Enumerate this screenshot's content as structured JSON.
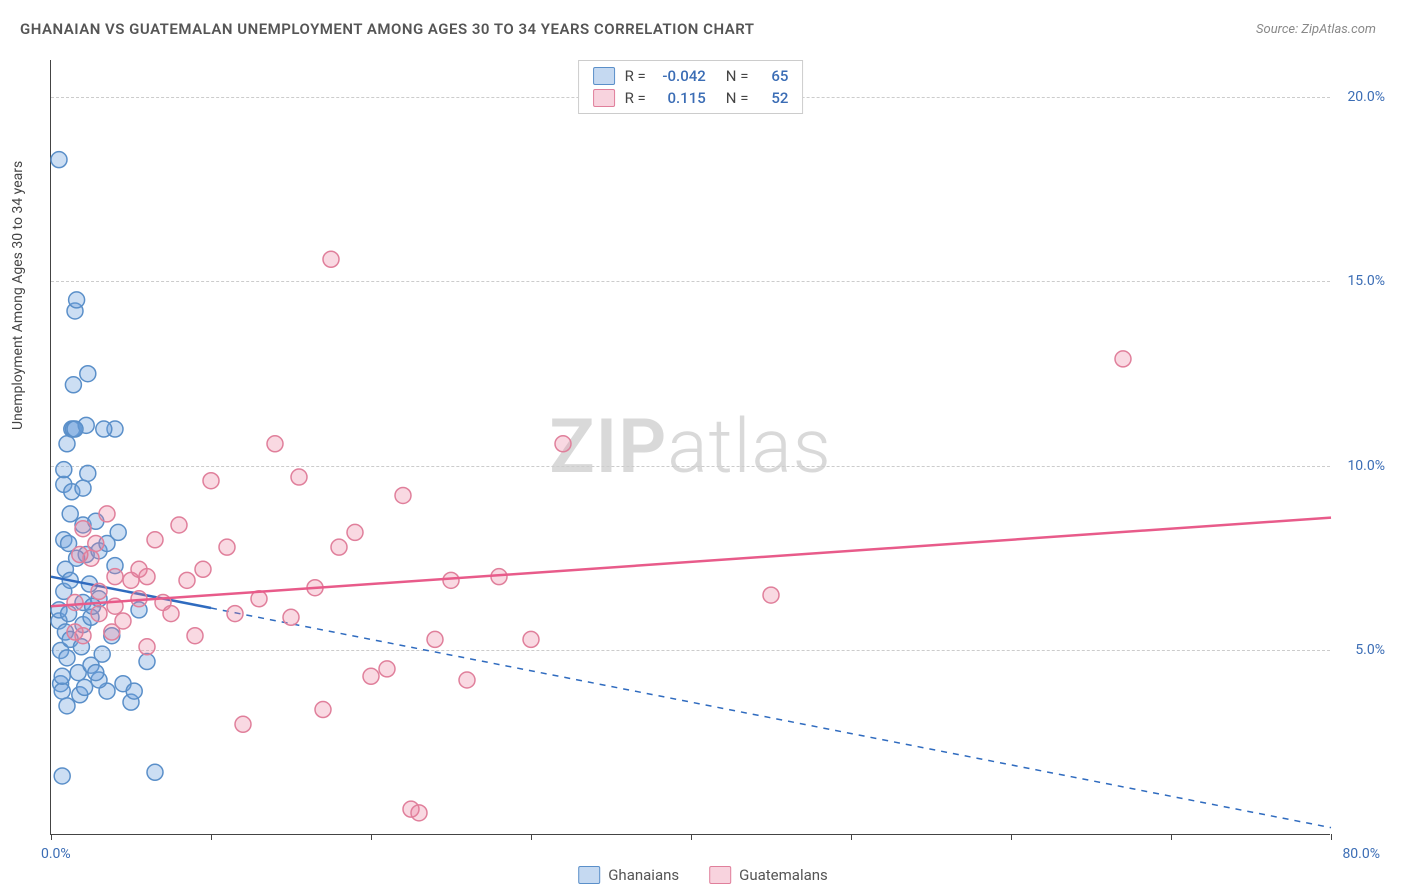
{
  "title": "GHANAIAN VS GUATEMALAN UNEMPLOYMENT AMONG AGES 30 TO 34 YEARS CORRELATION CHART",
  "source": "Source: ZipAtlas.com",
  "y_axis_label": "Unemployment Among Ages 30 to 34 years",
  "watermark_bold": "ZIP",
  "watermark_rest": "atlas",
  "chart": {
    "type": "scatter",
    "xlim": [
      0,
      80
    ],
    "ylim": [
      0,
      21
    ],
    "x_ticks": [
      0,
      10,
      20,
      30,
      40,
      50,
      60,
      70,
      80
    ],
    "x_tick_labels": {
      "0": "0.0%",
      "80": "80.0%"
    },
    "y_grid": [
      5,
      10,
      15,
      20
    ],
    "y_tick_labels": {
      "5": "5.0%",
      "10": "10.0%",
      "15": "15.0%",
      "20": "20.0%"
    },
    "background_color": "#ffffff",
    "grid_color": "#cccccc",
    "series": [
      {
        "key": "ghanaians",
        "name": "Ghanaians",
        "R": "-0.042",
        "N": "65",
        "marker_fill": "rgba(110,160,220,0.35)",
        "marker_stroke": "#5a8fc9",
        "line_color": "#2f6bbf",
        "line_dash_after_x": 10,
        "trend": {
          "x1": 0,
          "y1": 7.0,
          "x2": 80,
          "y2": 0.2
        },
        "data": [
          [
            0.5,
            5.8
          ],
          [
            0.5,
            6.1
          ],
          [
            0.6,
            4.1
          ],
          [
            0.6,
            5.0
          ],
          [
            0.7,
            3.9
          ],
          [
            0.7,
            4.3
          ],
          [
            0.8,
            8.0
          ],
          [
            0.8,
            9.5
          ],
          [
            0.8,
            6.6
          ],
          [
            0.9,
            7.2
          ],
          [
            0.9,
            5.5
          ],
          [
            1.0,
            3.5
          ],
          [
            1.0,
            4.8
          ],
          [
            1.1,
            6.0
          ],
          [
            1.1,
            7.9
          ],
          [
            1.2,
            5.3
          ],
          [
            1.2,
            8.7
          ],
          [
            1.3,
            9.3
          ],
          [
            1.3,
            11.0
          ],
          [
            1.4,
            11.0
          ],
          [
            1.4,
            12.2
          ],
          [
            1.5,
            14.2
          ],
          [
            1.6,
            14.5
          ],
          [
            1.7,
            4.4
          ],
          [
            1.8,
            3.8
          ],
          [
            2.0,
            5.7
          ],
          [
            2.0,
            6.3
          ],
          [
            2.0,
            8.4
          ],
          [
            2.1,
            4.0
          ],
          [
            2.2,
            7.6
          ],
          [
            2.2,
            11.1
          ],
          [
            2.3,
            12.5
          ],
          [
            2.3,
            9.8
          ],
          [
            2.4,
            6.8
          ],
          [
            2.5,
            5.9
          ],
          [
            2.5,
            4.6
          ],
          [
            2.8,
            8.5
          ],
          [
            3.0,
            7.7
          ],
          [
            3.0,
            6.4
          ],
          [
            3.2,
            4.9
          ],
          [
            3.5,
            3.9
          ],
          [
            3.8,
            5.4
          ],
          [
            4.0,
            7.3
          ],
          [
            4.0,
            11.0
          ],
          [
            4.5,
            4.1
          ],
          [
            5.0,
            3.6
          ],
          [
            5.5,
            6.1
          ],
          [
            6.0,
            4.7
          ],
          [
            6.5,
            1.7
          ],
          [
            0.7,
            1.6
          ],
          [
            0.5,
            18.3
          ],
          [
            0.8,
            9.9
          ],
          [
            1.0,
            10.6
          ],
          [
            1.5,
            11.0
          ],
          [
            3.0,
            4.2
          ],
          [
            3.5,
            7.9
          ],
          [
            2.6,
            6.2
          ],
          [
            4.2,
            8.2
          ],
          [
            5.2,
            3.9
          ],
          [
            1.2,
            6.9
          ],
          [
            1.6,
            7.5
          ],
          [
            2.0,
            9.4
          ],
          [
            1.9,
            5.1
          ],
          [
            2.8,
            4.4
          ],
          [
            3.3,
            11.0
          ]
        ]
      },
      {
        "key": "guatemalans",
        "name": "Guatemalans",
        "R": "0.115",
        "N": "52",
        "marker_fill": "rgba(235,130,160,0.30)",
        "marker_stroke": "#e07f9b",
        "line_color": "#e85b8a",
        "trend": {
          "x1": 0,
          "y1": 6.2,
          "x2": 80,
          "y2": 8.6
        },
        "data": [
          [
            2.5,
            7.5
          ],
          [
            3.0,
            6.0
          ],
          [
            3.5,
            8.7
          ],
          [
            4.0,
            7.0
          ],
          [
            4.5,
            5.8
          ],
          [
            5.0,
            6.9
          ],
          [
            5.5,
            7.2
          ],
          [
            6.0,
            5.1
          ],
          [
            6.5,
            8.0
          ],
          [
            7.0,
            6.3
          ],
          [
            8.0,
            8.4
          ],
          [
            9.0,
            5.4
          ],
          [
            10.0,
            9.6
          ],
          [
            11.0,
            7.8
          ],
          [
            12.0,
            3.0
          ],
          [
            13.0,
            6.4
          ],
          [
            14.0,
            10.6
          ],
          [
            15.0,
            5.9
          ],
          [
            15.5,
            9.7
          ],
          [
            16.5,
            6.7
          ],
          [
            17.0,
            3.4
          ],
          [
            18.0,
            7.8
          ],
          [
            19.0,
            8.2
          ],
          [
            20.0,
            4.3
          ],
          [
            21.0,
            4.5
          ],
          [
            22.0,
            9.2
          ],
          [
            22.5,
            0.7
          ],
          [
            23.0,
            0.6
          ],
          [
            24.0,
            5.3
          ],
          [
            25.0,
            6.9
          ],
          [
            26.0,
            4.2
          ],
          [
            28.0,
            7.0
          ],
          [
            30.0,
            5.3
          ],
          [
            32.0,
            10.6
          ],
          [
            2.0,
            8.3
          ],
          [
            3.0,
            6.6
          ],
          [
            6.0,
            7.0
          ],
          [
            7.5,
            6.0
          ],
          [
            2.0,
            5.4
          ],
          [
            4.0,
            6.2
          ],
          [
            8.5,
            6.9
          ],
          [
            11.5,
            6.0
          ],
          [
            17.5,
            15.6
          ],
          [
            45.0,
            6.5
          ],
          [
            67.0,
            12.9
          ],
          [
            2.8,
            7.9
          ],
          [
            3.8,
            5.5
          ],
          [
            5.5,
            6.4
          ],
          [
            9.5,
            7.2
          ],
          [
            1.5,
            6.3
          ],
          [
            1.8,
            7.6
          ],
          [
            1.5,
            5.5
          ]
        ]
      }
    ]
  },
  "colors": {
    "blue_swatch_fill": "rgba(110,160,220,0.4)",
    "blue_swatch_border": "#5a8fc9",
    "pink_swatch_fill": "rgba(235,130,160,0.35)",
    "pink_swatch_border": "#e07f9b",
    "axis_text": "#3b6db5"
  },
  "stats_labels": {
    "R": "R =",
    "N": "N ="
  }
}
